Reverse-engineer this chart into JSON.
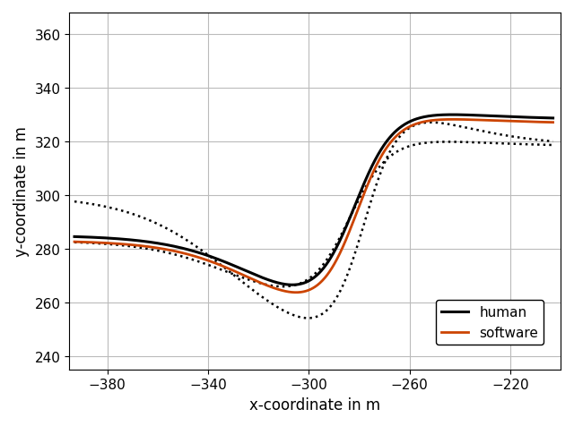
{
  "xlabel": "x-coordinate in m",
  "ylabel": "y-coordinate in m",
  "xlim": [
    -395,
    -200
  ],
  "ylim": [
    235,
    368
  ],
  "xticks": [
    -380,
    -340,
    -300,
    -260,
    -220
  ],
  "yticks": [
    240,
    260,
    280,
    300,
    320,
    340,
    360
  ],
  "human_color": "#000000",
  "software_color": "#cc4400",
  "boundary_color": "#000000",
  "legend_labels": [
    "human",
    "software"
  ],
  "grid": true,
  "background_color": "#ffffff"
}
